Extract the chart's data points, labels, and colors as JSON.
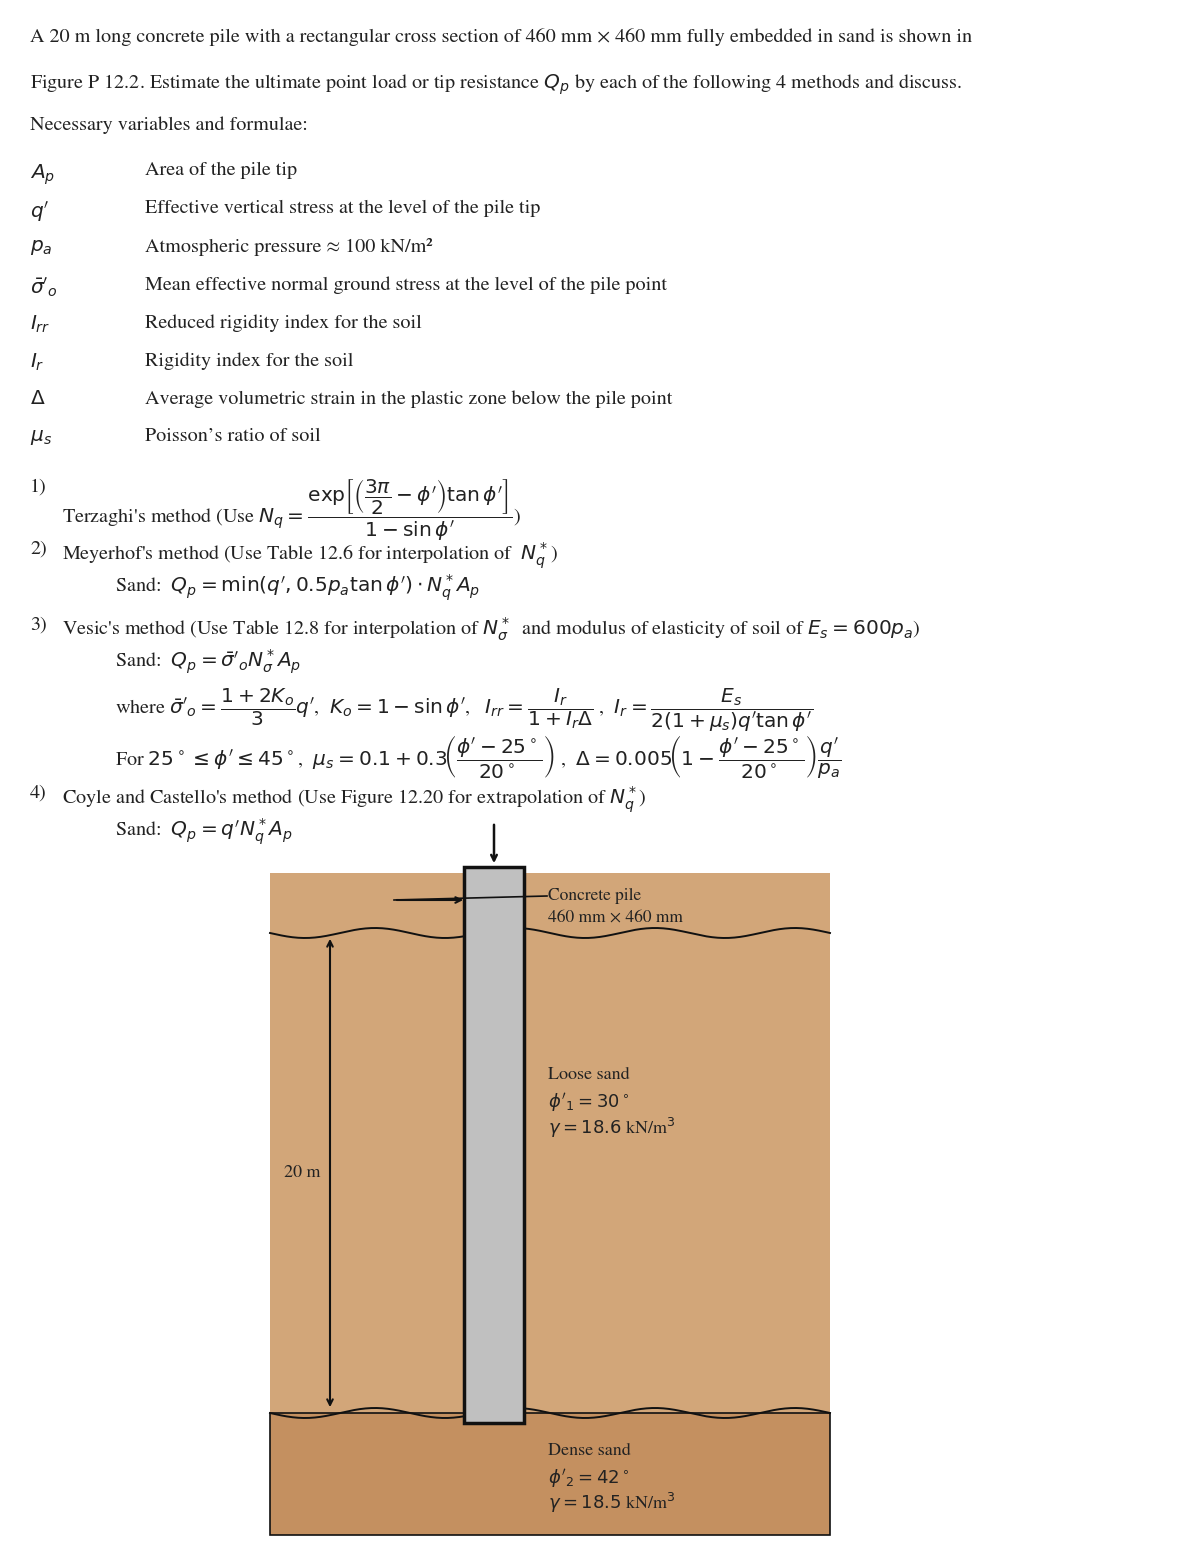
{
  "bg_color": "#ffffff",
  "text_color": "#222222",
  "title_line1": "A 20 m long concrete pile with a rectangular cross section of 460 mm × 460 mm fully embedded in sand is shown in",
  "title_line2": "Figure P 12.2. Estimate the ultimate point load or tip resistance $Q_p$ by each of the following 4 methods and discuss.",
  "title_line3": "Necessary variables and formulae:",
  "variables": [
    [
      "$A_p$",
      "Area of the pile tip"
    ],
    [
      "$q'$",
      "Effective vertical stress at the level of the pile tip"
    ],
    [
      "$p_a$",
      "Atmospheric pressure ≈ 100 kN/m²"
    ],
    [
      "$\\bar{\\sigma}'_o$",
      "Mean effective normal ground stress at the level of the pile point"
    ],
    [
      "$I_{rr}$",
      "Reduced rigidity index for the soil"
    ],
    [
      "$I_r$",
      "Rigidity index for the soil"
    ],
    [
      "$\\Delta$",
      "Average volumetric strain in the plastic zone below the pile point"
    ],
    [
      "$\\mu_s$",
      "Poisson’s ratio of soil"
    ]
  ],
  "sand_color": "#d2a679",
  "dense_sand_color": "#c49060",
  "pile_color": "#c0c0c0",
  "pile_outline": "#111111",
  "arrow_color": "#333333"
}
